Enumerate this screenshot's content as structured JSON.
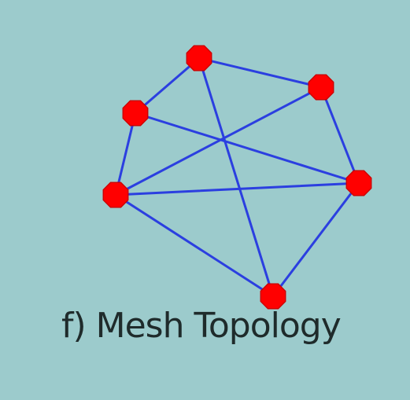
{
  "diagram": {
    "caption": "f) Mesh Topology",
    "colors": {
      "background": "#9ccbcc",
      "link": "#2b3fe0",
      "node": "#ff0000",
      "node_outline": "#d00000",
      "caption": "#1f2b2b"
    },
    "nodes": [
      {
        "id": "n1"
      },
      {
        "id": "n2"
      },
      {
        "id": "n3"
      },
      {
        "id": "n4"
      },
      {
        "id": "n5"
      },
      {
        "id": "n6"
      }
    ],
    "links": [
      [
        "n1",
        "n2"
      ],
      [
        "n1",
        "n3"
      ],
      [
        "n1",
        "n6"
      ],
      [
        "n3",
        "n4"
      ],
      [
        "n3",
        "n5"
      ],
      [
        "n2",
        "n5"
      ],
      [
        "n2",
        "n4"
      ],
      [
        "n4",
        "n5"
      ],
      [
        "n4",
        "n6"
      ],
      [
        "n5",
        "n6"
      ]
    ]
  }
}
